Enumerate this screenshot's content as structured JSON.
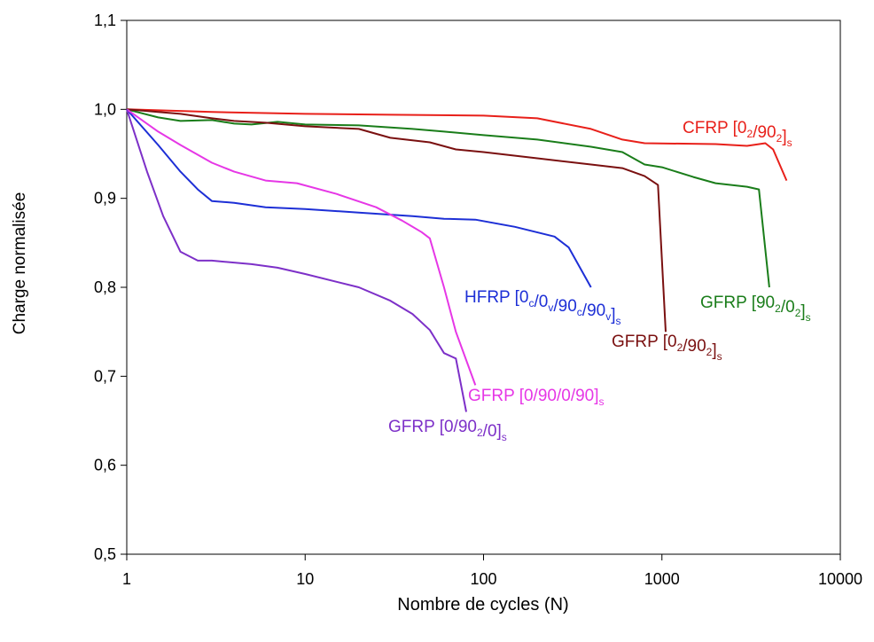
{
  "chart_data": {
    "type": "line",
    "xlabel": "Nombre de cycles (N)",
    "ylabel": "Charge normalisée",
    "x_scale": "log",
    "xlim": [
      1,
      10000
    ],
    "ylim": [
      0.5,
      1.1
    ],
    "x_ticks": [
      {
        "value": 1,
        "label": "1"
      },
      {
        "value": 10,
        "label": "10"
      },
      {
        "value": 100,
        "label": "100"
      },
      {
        "value": 1000,
        "label": "1000"
      },
      {
        "value": 10000,
        "label": "10000"
      }
    ],
    "y_ticks": [
      {
        "value": 0.5,
        "label": "0,5"
      },
      {
        "value": 0.6,
        "label": "0,6"
      },
      {
        "value": 0.7,
        "label": "0,7"
      },
      {
        "value": 0.8,
        "label": "0,8"
      },
      {
        "value": 0.9,
        "label": "0,9"
      },
      {
        "value": 1.0,
        "label": "1,0"
      },
      {
        "value": 1.1,
        "label": "1,1"
      }
    ],
    "grid": false,
    "legend": "inline labels",
    "series": [
      {
        "key": "cfrp-0-90",
        "name": "CFRP [0₂/90₂]ₛ",
        "label_parts": [
          [
            "CFRP [0",
            "n"
          ],
          [
            "2",
            "sub"
          ],
          [
            "/90",
            "n"
          ],
          [
            "2",
            "sub"
          ],
          [
            "]",
            "n"
          ],
          [
            "s",
            "sub"
          ]
        ],
        "color": "#e8201a",
        "points": [
          [
            1,
            1.0
          ],
          [
            3,
            0.997
          ],
          [
            10,
            0.995
          ],
          [
            30,
            0.994
          ],
          [
            100,
            0.993
          ],
          [
            200,
            0.99
          ],
          [
            400,
            0.978
          ],
          [
            600,
            0.966
          ],
          [
            800,
            0.962
          ],
          [
            2000,
            0.961
          ],
          [
            3000,
            0.959
          ],
          [
            3800,
            0.962
          ],
          [
            4200,
            0.955
          ],
          [
            5000,
            0.92
          ]
        ]
      },
      {
        "key": "gfrp-90-0",
        "name": "GFRP [90₂/0₂]ₛ",
        "label_parts": [
          [
            "GFRP [90",
            "n"
          ],
          [
            "2",
            "sub"
          ],
          [
            "/0",
            "n"
          ],
          [
            "2",
            "sub"
          ],
          [
            "]",
            "n"
          ],
          [
            "s",
            "sub"
          ]
        ],
        "color": "#1a7d1a",
        "points": [
          [
            1,
            1.0
          ],
          [
            1.5,
            0.991
          ],
          [
            2,
            0.987
          ],
          [
            3,
            0.988
          ],
          [
            4,
            0.984
          ],
          [
            5,
            0.983
          ],
          [
            7,
            0.986
          ],
          [
            10,
            0.983
          ],
          [
            20,
            0.982
          ],
          [
            40,
            0.978
          ],
          [
            60,
            0.975
          ],
          [
            100,
            0.971
          ],
          [
            200,
            0.966
          ],
          [
            400,
            0.958
          ],
          [
            600,
            0.952
          ],
          [
            800,
            0.938
          ],
          [
            1000,
            0.935
          ],
          [
            1500,
            0.924
          ],
          [
            2000,
            0.917
          ],
          [
            3000,
            0.913
          ],
          [
            3500,
            0.91
          ],
          [
            4000,
            0.8
          ]
        ]
      },
      {
        "key": "gfrp-0-90",
        "name": "GFRP [0₂/90₂]ₛ",
        "label_parts": [
          [
            "GFRP [0",
            "n"
          ],
          [
            "2",
            "sub"
          ],
          [
            "/90",
            "n"
          ],
          [
            "2",
            "sub"
          ],
          [
            "]",
            "n"
          ],
          [
            "s",
            "sub"
          ]
        ],
        "color": "#7a1010",
        "points": [
          [
            1,
            1.0
          ],
          [
            2,
            0.995
          ],
          [
            3,
            0.99
          ],
          [
            4,
            0.987
          ],
          [
            6,
            0.985
          ],
          [
            10,
            0.981
          ],
          [
            20,
            0.978
          ],
          [
            30,
            0.968
          ],
          [
            50,
            0.963
          ],
          [
            70,
            0.955
          ],
          [
            100,
            0.952
          ],
          [
            200,
            0.945
          ],
          [
            400,
            0.938
          ],
          [
            600,
            0.934
          ],
          [
            800,
            0.925
          ],
          [
            950,
            0.915
          ],
          [
            1050,
            0.75
          ]
        ]
      },
      {
        "key": "hfrp",
        "name": "HFRP [0c/0v/90c/90v]s",
        "label_parts": [
          [
            "HFRP [0",
            "n"
          ],
          [
            "c",
            "sub"
          ],
          [
            "/0",
            "n"
          ],
          [
            "v",
            "sub"
          ],
          [
            "/90",
            "n"
          ],
          [
            "c",
            "sub"
          ],
          [
            "/90",
            "n"
          ],
          [
            "v",
            "sub"
          ],
          [
            "]",
            "n"
          ],
          [
            "s",
            "sub"
          ]
        ],
        "color": "#1d2fd6",
        "points": [
          [
            1,
            1.0
          ],
          [
            1.5,
            0.96
          ],
          [
            2,
            0.93
          ],
          [
            2.5,
            0.91
          ],
          [
            3,
            0.897
          ],
          [
            4,
            0.895
          ],
          [
            6,
            0.89
          ],
          [
            10,
            0.888
          ],
          [
            20,
            0.884
          ],
          [
            40,
            0.88
          ],
          [
            60,
            0.877
          ],
          [
            90,
            0.876
          ],
          [
            150,
            0.868
          ],
          [
            250,
            0.857
          ],
          [
            300,
            0.845
          ],
          [
            400,
            0.8
          ]
        ]
      },
      {
        "key": "gfrp-0-90-0-90",
        "name": "GFRP [0/90/0/90]ₛ",
        "label_parts": [
          [
            "GFRP [0/90/0/90]",
            "n"
          ],
          [
            "s",
            "sub"
          ]
        ],
        "color": "#e637e6",
        "points": [
          [
            1,
            1.0
          ],
          [
            1.5,
            0.975
          ],
          [
            2,
            0.96
          ],
          [
            3,
            0.94
          ],
          [
            4,
            0.93
          ],
          [
            6,
            0.92
          ],
          [
            9,
            0.917
          ],
          [
            15,
            0.905
          ],
          [
            25,
            0.89
          ],
          [
            35,
            0.875
          ],
          [
            45,
            0.862
          ],
          [
            50,
            0.855
          ],
          [
            60,
            0.8
          ],
          [
            70,
            0.75
          ],
          [
            90,
            0.69
          ]
        ]
      },
      {
        "key": "gfrp-0-90-2-0",
        "name": "GFRP [0/90₂/0]ₛ",
        "label_parts": [
          [
            "GFRP [0/90",
            "n"
          ],
          [
            "2",
            "sub"
          ],
          [
            "/0]",
            "n"
          ],
          [
            "s",
            "sub"
          ]
        ],
        "color": "#7d30c8",
        "points": [
          [
            1,
            1.0
          ],
          [
            1.3,
            0.93
          ],
          [
            1.6,
            0.88
          ],
          [
            2,
            0.84
          ],
          [
            2.5,
            0.83
          ],
          [
            3,
            0.83
          ],
          [
            5,
            0.826
          ],
          [
            7,
            0.822
          ],
          [
            10,
            0.815
          ],
          [
            20,
            0.8
          ],
          [
            30,
            0.785
          ],
          [
            40,
            0.77
          ],
          [
            50,
            0.752
          ],
          [
            60,
            0.726
          ],
          [
            70,
            0.72
          ],
          [
            80,
            0.66
          ]
        ]
      }
    ]
  }
}
